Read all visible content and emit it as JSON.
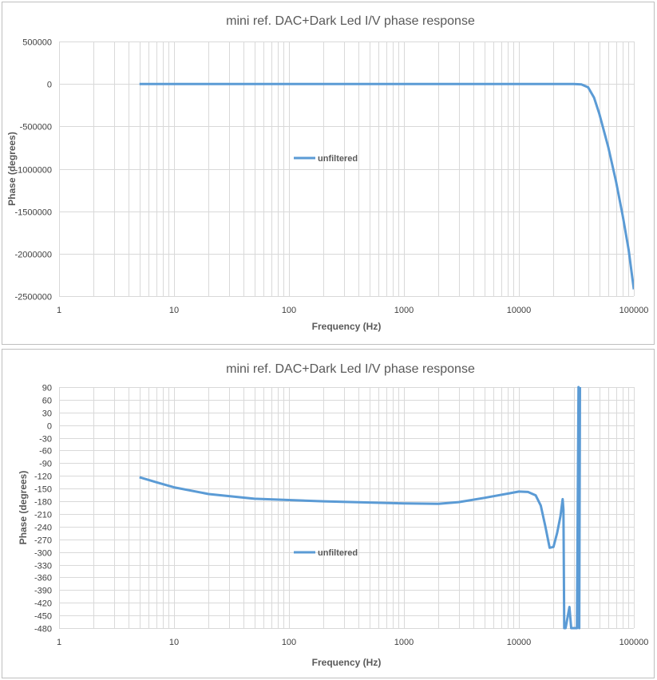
{
  "chart_data": [
    {
      "type": "line",
      "title": "mini ref. DAC+Dark Led I/V phase response",
      "xlabel": "Frequency (Hz)",
      "ylabel": "Phase (degrees)",
      "x_scale": "log",
      "xlim": [
        1,
        100000
      ],
      "ylim": [
        -2500000,
        500000
      ],
      "x_ticks": [
        "1",
        "10",
        "100",
        "1000",
        "10000",
        "100000"
      ],
      "y_ticks": [
        "500000",
        "0",
        "-500000",
        "-1000000",
        "-1500000",
        "-2000000",
        "-2500000"
      ],
      "grid": true,
      "legend_position": "left-middle",
      "series": [
        {
          "name": "unfiltered",
          "color": "#5b9bd5",
          "x": [
            5,
            10,
            100,
            1000,
            10000,
            20000,
            30000,
            35000,
            40000,
            45000,
            50000,
            60000,
            70000,
            80000,
            90000,
            100000
          ],
          "y": [
            0,
            0,
            0,
            0,
            0,
            0,
            0,
            -5000,
            -40000,
            -160000,
            -350000,
            -750000,
            -1150000,
            -1550000,
            -1950000,
            -2420000
          ]
        }
      ]
    },
    {
      "type": "line",
      "title": "mini ref. DAC+Dark Led I/V phase response",
      "xlabel": "Frequency (Hz)",
      "ylabel": "Phase (degrees)",
      "x_scale": "log",
      "xlim": [
        1,
        100000
      ],
      "ylim": [
        -480,
        90
      ],
      "x_ticks": [
        "1",
        "10",
        "100",
        "1000",
        "10000",
        "100000"
      ],
      "y_ticks": [
        "90",
        "60",
        "30",
        "0",
        "-30",
        "-60",
        "-90",
        "-120",
        "-150",
        "-180",
        "-210",
        "-240",
        "-270",
        "-300",
        "-330",
        "-360",
        "-390",
        "-420",
        "-450",
        "-480"
      ],
      "grid": true,
      "legend_position": "left-middle",
      "series": [
        {
          "name": "unfiltered",
          "color": "#5b9bd5",
          "x": [
            5,
            7,
            10,
            20,
            50,
            100,
            200,
            500,
            1000,
            2000,
            3000,
            5000,
            8000,
            10000,
            12000,
            14000,
            15500,
            17000,
            18500,
            20000,
            21500,
            23000,
            24000,
            24400,
            24800,
            25500,
            26500,
            27500,
            28500,
            30000,
            32000,
            33000,
            33500,
            34000
          ],
          "y": [
            -123,
            -135,
            -147,
            -163,
            -174,
            -177,
            -180,
            -183,
            -185,
            -186,
            -182,
            -172,
            -162,
            -157,
            -158,
            -166,
            -190,
            -240,
            -290,
            -288,
            -255,
            -215,
            -175,
            -200,
            -480,
            -480,
            -455,
            -430,
            -480,
            -480,
            -480,
            90,
            -480,
            90
          ]
        }
      ]
    }
  ]
}
